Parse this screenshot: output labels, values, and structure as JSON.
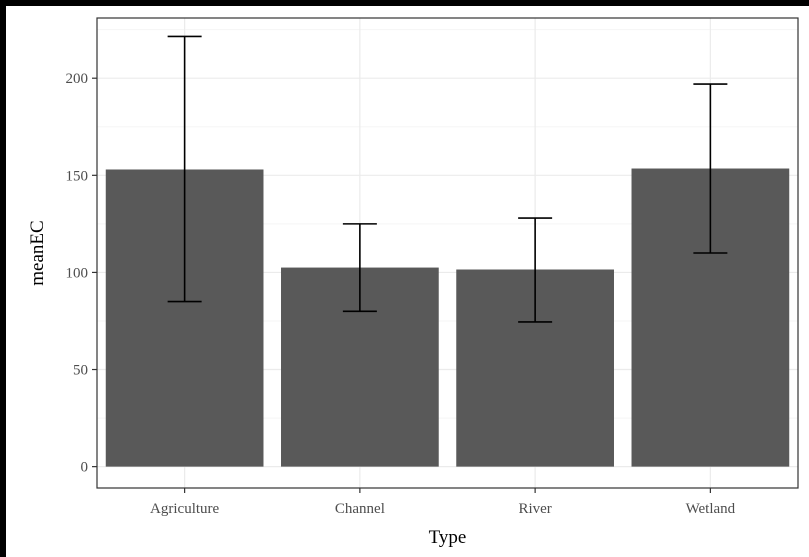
{
  "chart_data": {
    "type": "bar",
    "title": "",
    "xlabel": "Type",
    "ylabel": "meanEC",
    "categories": [
      "Agriculture",
      "Channel",
      "River",
      "Wetland"
    ],
    "series": [
      {
        "values": [
          153,
          102.5,
          101.5,
          153.5
        ],
        "error_low": [
          85,
          80,
          74.5,
          110
        ],
        "error_high": [
          221.5,
          125,
          128,
          197
        ]
      }
    ],
    "ylim": [
      -11,
      231
    ],
    "yticks": [
      0,
      50,
      100,
      150,
      200
    ],
    "grid": true,
    "legend": "none",
    "colors": {
      "bar": "#595959",
      "error_bar": "#000000",
      "panel_background": "#ffffff",
      "grid_major": "#ebebeb",
      "grid_minor": "#f5f5f5",
      "panel_border": "#333333",
      "outer_background": "#000000"
    }
  }
}
